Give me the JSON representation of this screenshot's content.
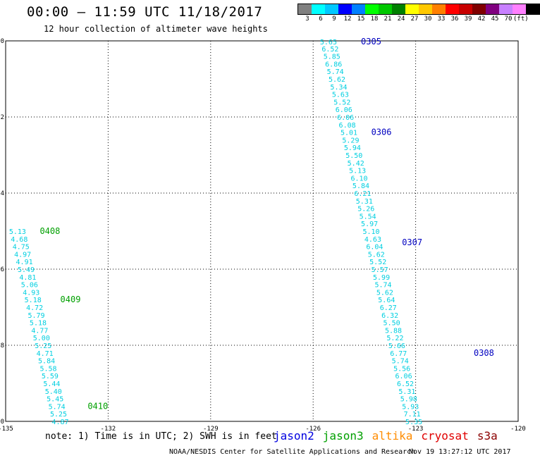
{
  "header": {
    "title": "00:00 – 11:59 UTC 11/18/2017",
    "subtitle": "12 hour collection of altimeter wave heights"
  },
  "colorbar": {
    "colors": [
      "#808080",
      "#00ffff",
      "#00c8ff",
      "#0000ff",
      "#0080ff",
      "#00ff00",
      "#00c800",
      "#008000",
      "#ffff00",
      "#ffc800",
      "#ff8000",
      "#ff0000",
      "#c80000",
      "#800000",
      "#800080",
      "#c880ff",
      "#ff80ff",
      "#000000"
    ],
    "labels": [
      "3",
      "6",
      "9",
      "12",
      "15",
      "18",
      "21",
      "24",
      "27",
      "30",
      "33",
      "36",
      "39",
      "42",
      "45",
      "70"
    ],
    "unit": "(ft)"
  },
  "map": {
    "lon_ticks": [
      "-135",
      "-132",
      "-129",
      "-126",
      "-123",
      "-120"
    ],
    "lat_ticks": [
      "0",
      "-2",
      "-4",
      "-6",
      "-8",
      "-10"
    ],
    "lon_range": [
      -135,
      -120
    ],
    "lat_range": [
      -10,
      0
    ]
  },
  "tracks": [
    {
      "satellite": "jason3",
      "color": "#00a000",
      "label_color": "#00cfe0",
      "times": [
        {
          "label": "0408",
          "lat": -5.0,
          "lon": -134.0
        },
        {
          "label": "0409",
          "lat": -6.8,
          "lon": -133.4
        },
        {
          "label": "0410",
          "lat": -9.6,
          "lon": -132.6
        }
      ],
      "points": [
        {
          "lat": -5.0,
          "lon": -134.9,
          "value": "5.13"
        },
        {
          "lat": -5.2,
          "lon": -134.85,
          "value": "4.68"
        },
        {
          "lat": -5.4,
          "lon": -134.8,
          "value": "4.75"
        },
        {
          "lat": -5.6,
          "lon": -134.75,
          "value": "4.97"
        },
        {
          "lat": -5.8,
          "lon": -134.7,
          "value": "4.91"
        },
        {
          "lat": -6.0,
          "lon": -134.65,
          "value": "5.49"
        },
        {
          "lat": -6.2,
          "lon": -134.6,
          "value": "4.81"
        },
        {
          "lat": -6.4,
          "lon": -134.55,
          "value": "5.06"
        },
        {
          "lat": -6.6,
          "lon": -134.5,
          "value": "4.93"
        },
        {
          "lat": -6.8,
          "lon": -134.45,
          "value": "5.18"
        },
        {
          "lat": -7.0,
          "lon": -134.4,
          "value": "4.72"
        },
        {
          "lat": -7.2,
          "lon": -134.35,
          "value": "5.79"
        },
        {
          "lat": -7.4,
          "lon": -134.3,
          "value": "5.18"
        },
        {
          "lat": -7.6,
          "lon": -134.25,
          "value": "4.77"
        },
        {
          "lat": -7.8,
          "lon": -134.2,
          "value": "5.00"
        },
        {
          "lat": -8.0,
          "lon": -134.15,
          "value": "5.25"
        },
        {
          "lat": -8.2,
          "lon": -134.1,
          "value": "4.71"
        },
        {
          "lat": -8.4,
          "lon": -134.05,
          "value": "5.84"
        },
        {
          "lat": -8.6,
          "lon": -134.0,
          "value": "5.58"
        },
        {
          "lat": -8.8,
          "lon": -133.95,
          "value": "5.59"
        },
        {
          "lat": -9.0,
          "lon": -133.9,
          "value": "5.44"
        },
        {
          "lat": -9.2,
          "lon": -133.85,
          "value": "5.40"
        },
        {
          "lat": -9.4,
          "lon": -133.8,
          "value": "5.45"
        },
        {
          "lat": -9.6,
          "lon": -133.75,
          "value": "5.74"
        },
        {
          "lat": -9.8,
          "lon": -133.7,
          "value": "5.25"
        },
        {
          "lat": -10.0,
          "lon": -133.65,
          "value": "4.87"
        }
      ]
    },
    {
      "satellite": "jason2",
      "color": "#0000c0",
      "label_color": "#00cfe0",
      "times": [
        {
          "label": "0305",
          "lat": -0.02,
          "lon": -124.6
        },
        {
          "label": "0306",
          "lat": -2.4,
          "lon": -124.3
        },
        {
          "label": "0307",
          "lat": -5.3,
          "lon": -123.4
        },
        {
          "label": "0308",
          "lat": -8.2,
          "lon": -121.3
        }
      ],
      "points": [
        {
          "lat": -0.02,
          "lon": -125.8,
          "value": "5.65"
        },
        {
          "lat": -0.2,
          "lon": -125.75,
          "value": "6.52"
        },
        {
          "lat": -0.4,
          "lon": -125.7,
          "value": "5.85"
        },
        {
          "lat": -0.6,
          "lon": -125.65,
          "value": "6.86"
        },
        {
          "lat": -0.8,
          "lon": -125.6,
          "value": "5.74"
        },
        {
          "lat": -1.0,
          "lon": -125.55,
          "value": "5.62"
        },
        {
          "lat": -1.2,
          "lon": -125.5,
          "value": "5.34"
        },
        {
          "lat": -1.4,
          "lon": -125.45,
          "value": "5.63"
        },
        {
          "lat": -1.6,
          "lon": -125.4,
          "value": "5.52"
        },
        {
          "lat": -1.8,
          "lon": -125.35,
          "value": "6.06"
        },
        {
          "lat": -2.0,
          "lon": -125.3,
          "value": "6.06"
        },
        {
          "lat": -2.2,
          "lon": -125.25,
          "value": "6.08"
        },
        {
          "lat": -2.4,
          "lon": -125.2,
          "value": "5.01"
        },
        {
          "lat": -2.6,
          "lon": -125.15,
          "value": "5.29"
        },
        {
          "lat": -2.8,
          "lon": -125.1,
          "value": "5.94"
        },
        {
          "lat": -3.0,
          "lon": -125.05,
          "value": "5.50"
        },
        {
          "lat": -3.2,
          "lon": -125.0,
          "value": "5.42"
        },
        {
          "lat": -3.4,
          "lon": -124.95,
          "value": "5.13"
        },
        {
          "lat": -3.6,
          "lon": -124.9,
          "value": "6.10"
        },
        {
          "lat": -3.8,
          "lon": -124.85,
          "value": "5.84"
        },
        {
          "lat": -4.0,
          "lon": -124.8,
          "value": "6.21"
        },
        {
          "lat": -4.2,
          "lon": -124.75,
          "value": "5.31"
        },
        {
          "lat": -4.4,
          "lon": -124.7,
          "value": "5.26"
        },
        {
          "lat": -4.6,
          "lon": -124.65,
          "value": "5.54"
        },
        {
          "lat": -4.8,
          "lon": -124.6,
          "value": "5.97"
        },
        {
          "lat": -5.0,
          "lon": -124.55,
          "value": "5.10"
        },
        {
          "lat": -5.2,
          "lon": -124.5,
          "value": "4.63"
        },
        {
          "lat": -5.4,
          "lon": -124.45,
          "value": "6.04"
        },
        {
          "lat": -5.6,
          "lon": -124.4,
          "value": "5.62"
        },
        {
          "lat": -5.8,
          "lon": -124.35,
          "value": "5.52"
        },
        {
          "lat": -6.0,
          "lon": -124.3,
          "value": "5.57"
        },
        {
          "lat": -6.2,
          "lon": -124.25,
          "value": "5.99"
        },
        {
          "lat": -6.4,
          "lon": -124.2,
          "value": "5.74"
        },
        {
          "lat": -6.6,
          "lon": -124.15,
          "value": "5.62"
        },
        {
          "lat": -6.8,
          "lon": -124.1,
          "value": "5.64"
        },
        {
          "lat": -7.0,
          "lon": -124.05,
          "value": "6.27"
        },
        {
          "lat": -7.2,
          "lon": -124.0,
          "value": "6.32"
        },
        {
          "lat": -7.4,
          "lon": -123.95,
          "value": "5.50"
        },
        {
          "lat": -7.6,
          "lon": -123.9,
          "value": "5.88"
        },
        {
          "lat": -7.8,
          "lon": -123.85,
          "value": "5.22"
        },
        {
          "lat": -8.0,
          "lon": -123.8,
          "value": "5.66"
        },
        {
          "lat": -8.2,
          "lon": -123.75,
          "value": "6.77"
        },
        {
          "lat": -8.4,
          "lon": -123.7,
          "value": "5.74"
        },
        {
          "lat": -8.6,
          "lon": -123.65,
          "value": "5.56"
        },
        {
          "lat": -8.8,
          "lon": -123.6,
          "value": "6.06"
        },
        {
          "lat": -9.0,
          "lon": -123.55,
          "value": "6.52"
        },
        {
          "lat": -9.2,
          "lon": -123.5,
          "value": "5.31"
        },
        {
          "lat": -9.4,
          "lon": -123.45,
          "value": "5.98"
        },
        {
          "lat": -9.6,
          "lon": -123.4,
          "value": "5.93"
        },
        {
          "lat": -9.8,
          "lon": -123.35,
          "value": "7.11"
        },
        {
          "lat": -10.0,
          "lon": -123.3,
          "value": "5.35"
        }
      ]
    }
  ],
  "satellites": [
    {
      "name": "jason2",
      "color": "#0000e0"
    },
    {
      "name": "jason3",
      "color": "#00a000"
    },
    {
      "name": "altika",
      "color": "#ff8c00"
    },
    {
      "name": "cryosat",
      "color": "#e00000"
    },
    {
      "name": "s3a",
      "color": "#8b0000"
    }
  ],
  "footer": {
    "note": "note:  1) Time is in UTC;  2) SWH is in feet",
    "credit": "NOAA/NESDIS Center for Satellite Applications and Research",
    "timestamp": "Nov 19 13:27:12 UTC 2017"
  }
}
